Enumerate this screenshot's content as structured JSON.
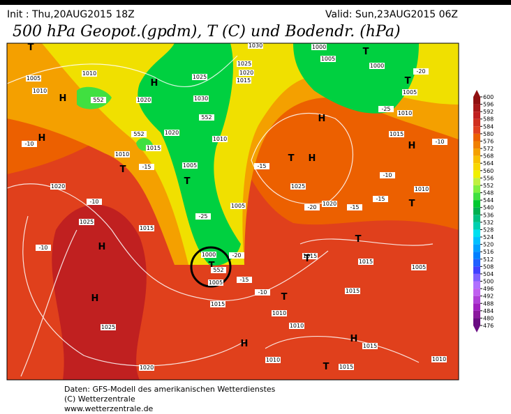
{
  "header": {
    "init": "Init : Thu,20AUG2015 18Z",
    "valid": "Valid: Sun,23AUG2015 06Z",
    "title": "500 hPa Geopot.(gpdm), T (C) und Bodendr. (hPa)"
  },
  "map_labels": [
    "T",
    "1005",
    "1010",
    "1010",
    "552",
    "1020",
    "H",
    "1025",
    "1030",
    "552",
    "1020",
    "552",
    "1015",
    "1010",
    "1010",
    "T",
    "1005",
    "T",
    "1020",
    "1025",
    "1015",
    "H",
    "H",
    "1025",
    "1020",
    "1000",
    "T",
    "552",
    "1005",
    "1015",
    "1005",
    "1020",
    "1025",
    "T",
    "H",
    "1030",
    "1025",
    "1020",
    "1015",
    "1000",
    "1005",
    "T",
    "1000",
    "T",
    "1005",
    "1010",
    "1015",
    "H",
    "1010",
    "T",
    "H",
    "1015",
    "1015",
    "T",
    "T",
    "1005",
    "T",
    "1010",
    "1010",
    "1015",
    "H",
    "1015",
    "H",
    "1010",
    "1015",
    "1010",
    "T",
    "H",
    "H",
    "-10",
    "-10",
    "-10",
    "-15",
    "-25",
    "-20",
    "-15",
    "-10",
    "-15",
    "-20",
    "-15",
    "-10",
    "-15",
    "-20",
    "-25",
    "-10"
  ],
  "colorbar": {
    "ticks": [
      600,
      596,
      592,
      588,
      584,
      580,
      576,
      572,
      568,
      564,
      560,
      556,
      552,
      548,
      544,
      540,
      536,
      532,
      528,
      524,
      520,
      516,
      512,
      508,
      504,
      500,
      496,
      492,
      488,
      484,
      480,
      476
    ],
    "colors": [
      "#901010",
      "#a81818",
      "#c02020",
      "#d03020",
      "#e04020",
      "#ec6000",
      "#f08000",
      "#f4a000",
      "#f8c000",
      "#f8d800",
      "#f0f000",
      "#c0f040",
      "#80f040",
      "#40e040",
      "#00c830",
      "#00b050",
      "#00c080",
      "#00d0b0",
      "#00e0f0",
      "#00c0ff",
      "#00a0ff",
      "#0080ff",
      "#2060ff",
      "#4040ff",
      "#8060ff",
      "#b070ff",
      "#c060f0",
      "#b040d8",
      "#a020c0",
      "#8b1a9e",
      "#6a0d83"
    ]
  },
  "footer": {
    "source": "Daten: GFS-Modell des amerikanischen Wetterdienstes",
    "copyright": "(C) Wetterzentrale",
    "url": "www.wetterzentrale.de"
  }
}
